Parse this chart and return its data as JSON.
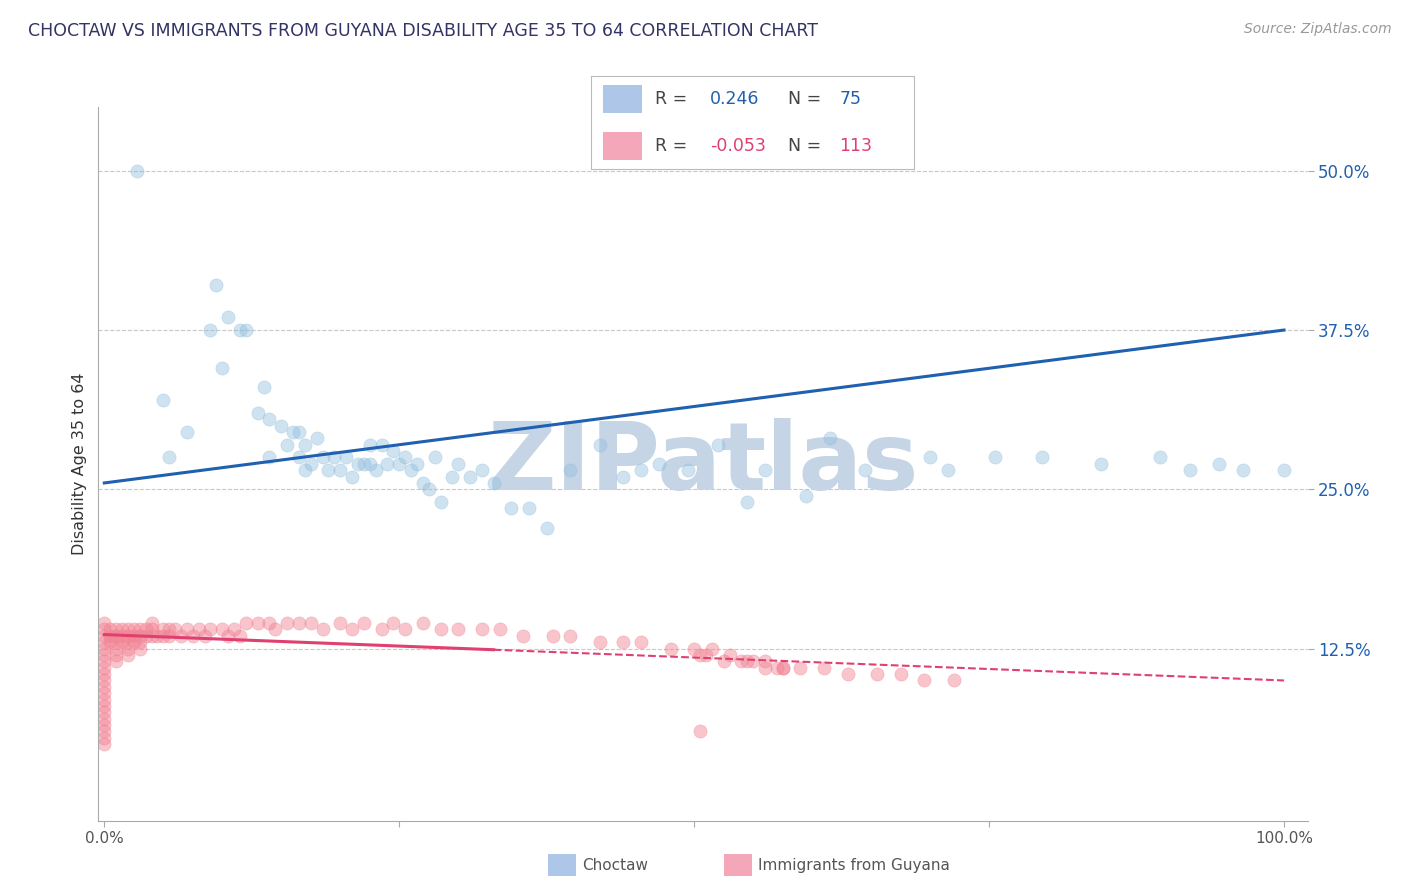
{
  "title": "CHOCTAW VS IMMIGRANTS FROM GUYANA DISABILITY AGE 35 TO 64 CORRELATION CHART",
  "source": "Source: ZipAtlas.com",
  "ylabel_label": "Disability Age 35 to 64",
  "x_tick_labels": [
    "0.0%",
    "",
    "",
    "",
    "100.0%"
  ],
  "x_ticks": [
    0.0,
    0.25,
    0.5,
    0.75,
    1.0
  ],
  "y_ticks": [
    0.125,
    0.25,
    0.375,
    0.5
  ],
  "y_tick_labels": [
    "12.5%",
    "25.0%",
    "37.5%",
    "50.0%"
  ],
  "ylim_min": -0.01,
  "ylim_max": 0.55,
  "xlim_min": -0.005,
  "xlim_max": 1.02,
  "blue_R": "0.246",
  "blue_N": "75",
  "pink_R": "-0.053",
  "pink_N": "113",
  "blue_dot_color": "#93bfdf",
  "pink_dot_color": "#f08090",
  "blue_line_color": "#2060b0",
  "pink_line_color": "#e04070",
  "blue_line_y_start": 0.255,
  "blue_line_y_end": 0.375,
  "pink_line_solid_x_end": 0.33,
  "pink_line_y_start": 0.136,
  "pink_line_y_end": 0.1,
  "grid_color": "#c8c8c8",
  "bg_color": "#ffffff",
  "watermark": "ZIPatlas",
  "watermark_color": "#c5d5e5",
  "legend_box_color": "#aec6e8",
  "legend_pink_color": "#f4a7b9",
  "legend_blue_text": "#2060b0",
  "legend_pink_text": "#e04070",
  "dot_size": 90,
  "dot_alpha": 0.45,
  "blue_scatter_x": [
    0.028,
    0.05,
    0.055,
    0.07,
    0.09,
    0.095,
    0.1,
    0.105,
    0.115,
    0.12,
    0.13,
    0.135,
    0.14,
    0.14,
    0.15,
    0.155,
    0.16,
    0.165,
    0.165,
    0.17,
    0.17,
    0.175,
    0.18,
    0.185,
    0.19,
    0.195,
    0.2,
    0.205,
    0.21,
    0.215,
    0.22,
    0.225,
    0.225,
    0.23,
    0.235,
    0.24,
    0.245,
    0.25,
    0.255,
    0.26,
    0.265,
    0.27,
    0.275,
    0.28,
    0.285,
    0.295,
    0.3,
    0.31,
    0.32,
    0.33,
    0.345,
    0.36,
    0.375,
    0.395,
    0.42,
    0.44,
    0.455,
    0.47,
    0.495,
    0.52,
    0.545,
    0.56,
    0.595,
    0.615,
    0.645,
    0.7,
    0.715,
    0.755,
    0.795,
    0.845,
    0.895,
    0.92,
    0.945,
    0.965,
    1.0
  ],
  "blue_scatter_y": [
    0.5,
    0.32,
    0.275,
    0.295,
    0.375,
    0.41,
    0.345,
    0.385,
    0.375,
    0.375,
    0.31,
    0.33,
    0.305,
    0.275,
    0.3,
    0.285,
    0.295,
    0.275,
    0.295,
    0.265,
    0.285,
    0.27,
    0.29,
    0.275,
    0.265,
    0.275,
    0.265,
    0.275,
    0.26,
    0.27,
    0.27,
    0.27,
    0.285,
    0.265,
    0.285,
    0.27,
    0.28,
    0.27,
    0.275,
    0.265,
    0.27,
    0.255,
    0.25,
    0.275,
    0.24,
    0.26,
    0.27,
    0.26,
    0.265,
    0.255,
    0.235,
    0.235,
    0.22,
    0.265,
    0.285,
    0.26,
    0.265,
    0.27,
    0.265,
    0.285,
    0.24,
    0.265,
    0.245,
    0.29,
    0.265,
    0.275,
    0.265,
    0.275,
    0.275,
    0.27,
    0.275,
    0.265,
    0.27,
    0.265,
    0.265
  ],
  "pink_scatter_x": [
    0.0,
    0.0,
    0.0,
    0.0,
    0.0,
    0.0,
    0.0,
    0.0,
    0.0,
    0.0,
    0.0,
    0.0,
    0.0,
    0.0,
    0.0,
    0.0,
    0.0,
    0.0,
    0.0,
    0.0,
    0.005,
    0.005,
    0.005,
    0.01,
    0.01,
    0.01,
    0.01,
    0.01,
    0.01,
    0.015,
    0.015,
    0.015,
    0.02,
    0.02,
    0.02,
    0.02,
    0.02,
    0.025,
    0.025,
    0.025,
    0.03,
    0.03,
    0.03,
    0.03,
    0.035,
    0.035,
    0.04,
    0.04,
    0.04,
    0.045,
    0.05,
    0.05,
    0.055,
    0.055,
    0.06,
    0.065,
    0.07,
    0.075,
    0.08,
    0.085,
    0.09,
    0.1,
    0.105,
    0.11,
    0.115,
    0.12,
    0.13,
    0.14,
    0.145,
    0.155,
    0.165,
    0.175,
    0.185,
    0.2,
    0.21,
    0.22,
    0.235,
    0.245,
    0.255,
    0.27,
    0.285,
    0.3,
    0.32,
    0.335,
    0.355,
    0.38,
    0.395,
    0.42,
    0.44,
    0.455,
    0.48,
    0.5,
    0.505,
    0.51,
    0.525,
    0.54,
    0.55,
    0.56,
    0.57,
    0.575,
    0.505,
    0.515,
    0.53,
    0.545,
    0.56,
    0.575,
    0.59,
    0.61,
    0.63,
    0.655,
    0.675,
    0.695,
    0.72
  ],
  "pink_scatter_y": [
    0.145,
    0.14,
    0.135,
    0.13,
    0.125,
    0.12,
    0.115,
    0.11,
    0.105,
    0.1,
    0.095,
    0.09,
    0.085,
    0.08,
    0.075,
    0.07,
    0.065,
    0.06,
    0.055,
    0.05,
    0.14,
    0.135,
    0.13,
    0.14,
    0.135,
    0.13,
    0.125,
    0.12,
    0.115,
    0.14,
    0.135,
    0.13,
    0.14,
    0.135,
    0.13,
    0.125,
    0.12,
    0.14,
    0.135,
    0.13,
    0.14,
    0.135,
    0.13,
    0.125,
    0.14,
    0.135,
    0.145,
    0.14,
    0.135,
    0.135,
    0.14,
    0.135,
    0.14,
    0.135,
    0.14,
    0.135,
    0.14,
    0.135,
    0.14,
    0.135,
    0.14,
    0.14,
    0.135,
    0.14,
    0.135,
    0.145,
    0.145,
    0.145,
    0.14,
    0.145,
    0.145,
    0.145,
    0.14,
    0.145,
    0.14,
    0.145,
    0.14,
    0.145,
    0.14,
    0.145,
    0.14,
    0.14,
    0.14,
    0.14,
    0.135,
    0.135,
    0.135,
    0.13,
    0.13,
    0.13,
    0.125,
    0.125,
    0.12,
    0.12,
    0.115,
    0.115,
    0.115,
    0.11,
    0.11,
    0.11,
    0.06,
    0.125,
    0.12,
    0.115,
    0.115,
    0.11,
    0.11,
    0.11,
    0.105,
    0.105,
    0.105,
    0.1,
    0.1
  ]
}
